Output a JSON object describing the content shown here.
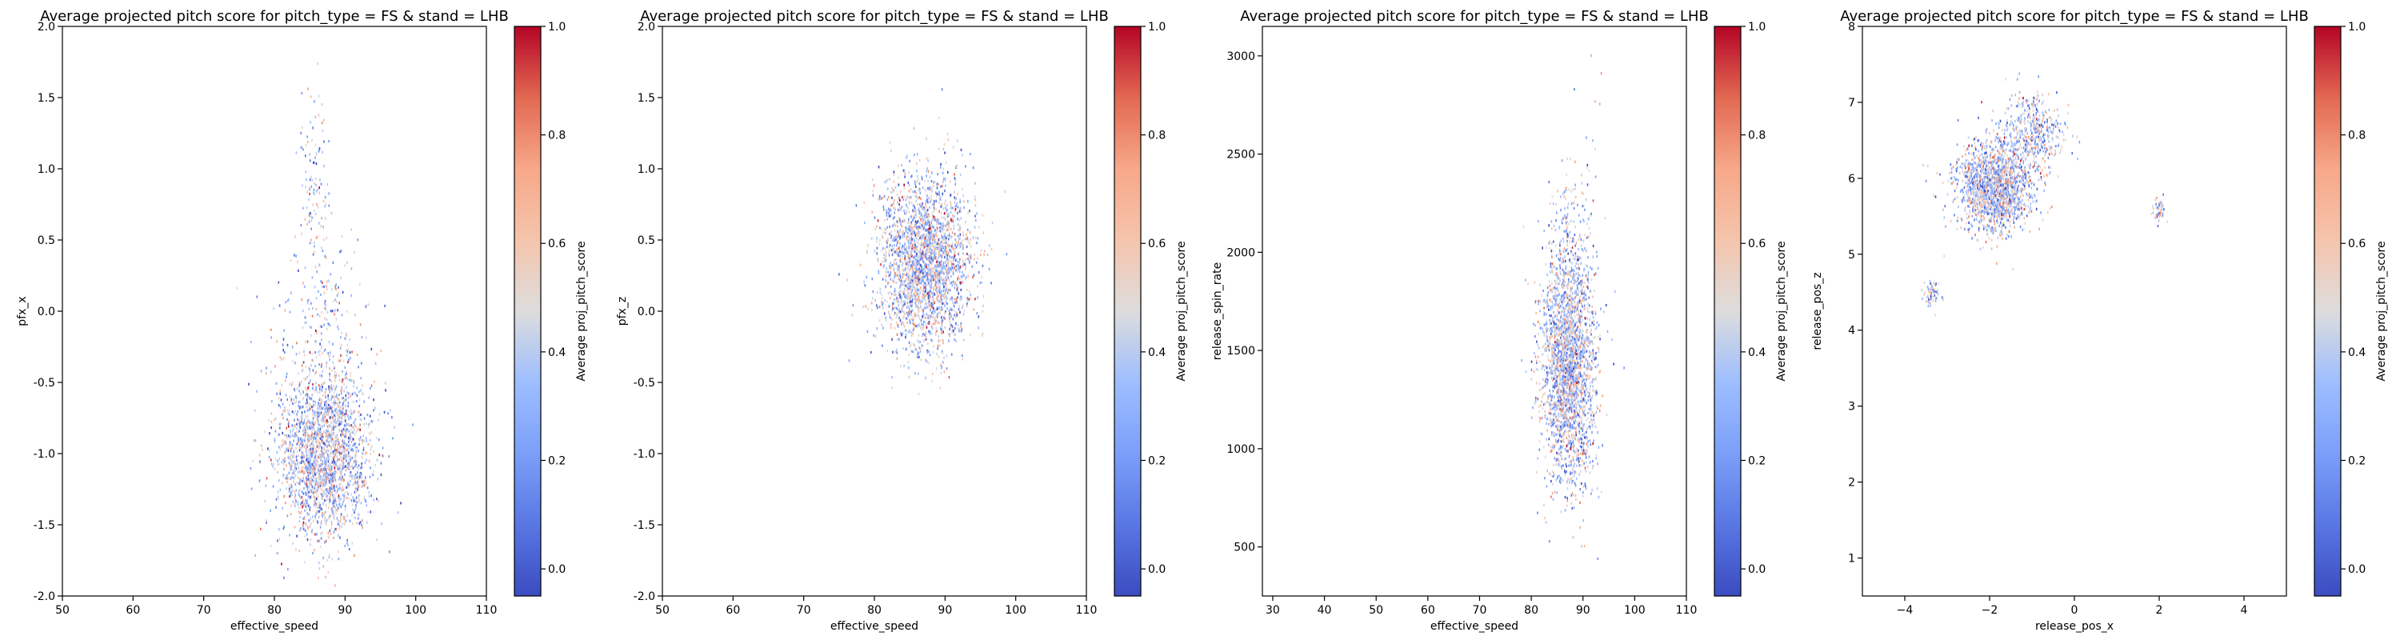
{
  "colorbar": {
    "label": "Average proj_pitch_score",
    "ticks": [
      "0.0",
      "0.2",
      "0.4",
      "0.6",
      "0.8",
      "1.0"
    ],
    "range": [
      -0.05,
      1.0
    ],
    "colormap": "coolwarm"
  },
  "chart_data": [
    {
      "type": "scatter",
      "title": "Average projected pitch score for pitch_type = FS & stand = LHB",
      "xlabel": "effective_speed",
      "ylabel": "pfx_x",
      "xlim": [
        50,
        110
      ],
      "ylim": [
        -2.0,
        2.0
      ],
      "xticks": [
        "50",
        "60",
        "70",
        "80",
        "90",
        "100",
        "110"
      ],
      "yticks": [
        "-2.0",
        "-1.5",
        "-1.0",
        "-0.5",
        "0.0",
        "0.5",
        "1.0",
        "1.5",
        "2.0"
      ],
      "colorbar_label": "Average proj_pitch_score",
      "clusters": [
        {
          "center": [
            87.0,
            -1.0
          ],
          "spread": [
            3.3,
            0.3
          ],
          "count": 2200
        },
        {
          "center": [
            86.5,
            -0.2
          ],
          "spread": [
            3.5,
            0.35
          ],
          "count": 260
        },
        {
          "center": [
            85.7,
            0.9
          ],
          "spread": [
            1.0,
            0.35
          ],
          "count": 110
        }
      ]
    },
    {
      "type": "scatter",
      "title": "Average projected pitch score for pitch_type = FS & stand = LHB",
      "xlabel": "effective_speed",
      "ylabel": "pfx_z",
      "xlim": [
        50,
        110
      ],
      "ylim": [
        -2.0,
        2.0
      ],
      "xticks": [
        "50",
        "60",
        "70",
        "80",
        "90",
        "100",
        "110"
      ],
      "yticks": [
        "-2.0",
        "-1.5",
        "-1.0",
        "-0.5",
        "0.0",
        "0.5",
        "1.0",
        "1.5",
        "2.0"
      ],
      "colorbar_label": "Average proj_pitch_score",
      "clusters": [
        {
          "center": [
            87.0,
            0.35
          ],
          "spread": [
            3.3,
            0.3
          ],
          "count": 2500
        }
      ]
    },
    {
      "type": "scatter",
      "title": "Average projected pitch score for pitch_type = FS & stand = LHB",
      "xlabel": "effective_speed",
      "ylabel": "release_spin_rate",
      "xlim": [
        28,
        110
      ],
      "ylim": [
        250,
        3150
      ],
      "xticks": [
        "30",
        "40",
        "50",
        "60",
        "70",
        "80",
        "90",
        "100",
        "110"
      ],
      "yticks": [
        "500",
        "1000",
        "1500",
        "2000",
        "2500",
        "3000"
      ],
      "colorbar_label": "Average proj_pitch_score",
      "clusters": [
        {
          "center": [
            87.0,
            1450
          ],
          "spread": [
            2.6,
            320
          ],
          "count": 2500
        },
        {
          "center": [
            89.0,
            2300
          ],
          "spread": [
            3.0,
            220
          ],
          "count": 60
        }
      ]
    },
    {
      "type": "scatter",
      "title": "Average projected pitch score for pitch_type = FS & stand = LHB",
      "xlabel": "release_pos_x",
      "ylabel": "release_pos_z",
      "xlim": [
        -5,
        5
      ],
      "ylim": [
        0.5,
        8.0
      ],
      "xticks": [
        "−4",
        "−2",
        "0",
        "2",
        "4"
      ],
      "yticks": [
        "1",
        "2",
        "3",
        "4",
        "5",
        "6",
        "7",
        "8"
      ],
      "colorbar_label": "Average proj_pitch_score",
      "clusters": [
        {
          "center": [
            -1.9,
            5.9
          ],
          "spread": [
            0.45,
            0.3
          ],
          "count": 1600
        },
        {
          "center": [
            -1.0,
            6.6
          ],
          "spread": [
            0.35,
            0.25
          ],
          "count": 450
        },
        {
          "center": [
            -3.4,
            4.5
          ],
          "spread": [
            0.1,
            0.1
          ],
          "count": 60
        },
        {
          "center": [
            2.0,
            5.6
          ],
          "spread": [
            0.08,
            0.1
          ],
          "count": 45
        }
      ]
    }
  ]
}
